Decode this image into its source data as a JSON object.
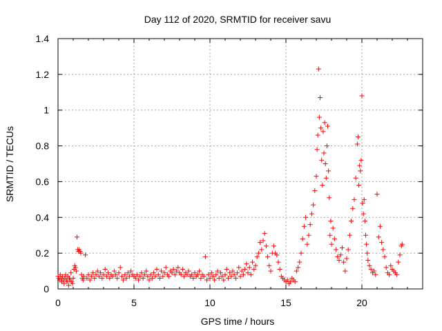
{
  "chart_data": {
    "type": "scatter",
    "title": "Day 112 of 2020, SRMTID for receiver savu",
    "xlabel": "GPS time / hours",
    "ylabel": "SRMTID / TECUs",
    "xlim": [
      0,
      24
    ],
    "ylim": [
      0,
      1.4
    ],
    "xticks": [
      0,
      5,
      10,
      15,
      20
    ],
    "xtick_labels": [
      "0",
      "5",
      "10",
      "15",
      "20"
    ],
    "yticks": [
      0,
      0.2,
      0.4,
      0.6,
      0.8,
      1.0,
      1.2,
      1.4
    ],
    "ytick_labels": [
      "0",
      "0.2",
      "0.4",
      "0.6",
      "0.8",
      "1",
      "1.2",
      "1.4"
    ],
    "grid": true,
    "marker": "+",
    "series": [
      {
        "name": "SRMTID",
        "color": "#ff0000",
        "x": [
          0.0,
          0.05,
          0.1,
          0.15,
          0.2,
          0.25,
          0.3,
          0.35,
          0.4,
          0.45,
          0.5,
          0.55,
          0.6,
          0.65,
          0.7,
          0.75,
          0.8,
          0.85,
          0.9,
          0.95,
          1.0,
          1.05,
          1.1,
          1.15,
          1.2,
          1.25,
          1.3,
          1.35,
          1.4,
          1.45,
          1.5,
          1.55,
          1.6,
          1.65,
          1.7,
          1.8,
          1.9,
          2.0,
          2.1,
          2.2,
          2.3,
          2.4,
          2.5,
          2.6,
          2.7,
          2.8,
          2.9,
          3.0,
          3.1,
          3.2,
          3.3,
          3.4,
          3.5,
          3.6,
          3.7,
          3.8,
          3.9,
          4.0,
          4.1,
          4.2,
          4.3,
          4.4,
          4.5,
          4.6,
          4.7,
          4.8,
          4.9,
          5.0,
          5.1,
          5.2,
          5.3,
          5.4,
          5.5,
          5.6,
          5.7,
          5.8,
          5.9,
          6.0,
          6.1,
          6.2,
          6.3,
          6.4,
          6.5,
          6.6,
          6.7,
          6.8,
          6.9,
          7.0,
          7.1,
          7.2,
          7.3,
          7.4,
          7.5,
          7.6,
          7.7,
          7.8,
          7.9,
          8.0,
          8.1,
          8.2,
          8.3,
          8.4,
          8.5,
          8.6,
          8.7,
          8.8,
          8.9,
          9.0,
          9.1,
          9.2,
          9.3,
          9.4,
          9.5,
          9.6,
          9.7,
          9.8,
          9.9,
          10.0,
          10.1,
          10.2,
          10.3,
          10.4,
          10.5,
          10.6,
          10.7,
          10.8,
          10.9,
          11.0,
          11.1,
          11.2,
          11.3,
          11.4,
          11.5,
          11.6,
          11.7,
          11.8,
          11.9,
          12.0,
          12.1,
          12.2,
          12.3,
          12.4,
          12.5,
          12.6,
          12.7,
          12.8,
          12.9,
          13.0,
          13.1,
          13.2,
          13.3,
          13.4,
          13.5,
          13.6,
          13.7,
          13.8,
          13.9,
          14.0,
          14.1,
          14.2,
          14.3,
          14.4,
          14.5,
          14.6,
          14.7,
          14.8,
          14.9,
          15.0,
          15.1,
          15.2,
          15.3,
          15.4,
          15.5,
          15.6,
          15.7,
          15.8,
          15.9,
          16.0,
          16.1,
          16.2,
          16.3,
          16.4,
          16.5,
          16.6,
          16.7,
          16.8,
          16.9,
          17.0,
          17.05,
          17.1,
          17.15,
          17.2,
          17.25,
          17.3,
          17.35,
          17.4,
          17.45,
          17.5,
          17.55,
          17.6,
          17.65,
          17.7,
          17.75,
          17.8,
          17.85,
          17.9,
          17.95,
          18.0,
          18.1,
          18.2,
          18.3,
          18.4,
          18.5,
          18.6,
          18.7,
          18.8,
          18.9,
          19.0,
          19.1,
          19.2,
          19.3,
          19.4,
          19.5,
          19.6,
          19.7,
          19.75,
          19.8,
          19.85,
          19.9,
          19.95,
          20.0,
          20.05,
          20.1,
          20.15,
          20.2,
          20.25,
          20.3,
          20.35,
          20.4,
          20.5,
          20.6,
          20.7,
          20.8,
          20.9,
          21.0,
          21.1,
          21.2,
          21.3,
          21.4,
          21.5,
          21.6,
          21.7,
          21.8,
          21.9,
          22.0,
          22.1,
          22.2,
          22.3,
          22.4,
          22.5,
          22.6,
          22.65
        ],
        "y": [
          0.07,
          0.06,
          0.05,
          0.08,
          0.06,
          0.04,
          0.07,
          0.05,
          0.03,
          0.06,
          0.08,
          0.05,
          0.04,
          0.07,
          0.02,
          0.06,
          0.05,
          0.09,
          0.04,
          0.03,
          0.06,
          0.11,
          0.13,
          0.12,
          0.1,
          0.29,
          0.22,
          0.21,
          0.22,
          0.21,
          0.2,
          0.08,
          0.06,
          0.05,
          0.07,
          0.19,
          0.06,
          0.08,
          0.05,
          0.07,
          0.09,
          0.06,
          0.08,
          0.1,
          0.07,
          0.09,
          0.06,
          0.08,
          0.11,
          0.07,
          0.09,
          0.06,
          0.08,
          0.07,
          0.1,
          0.08,
          0.06,
          0.09,
          0.12,
          0.07,
          0.05,
          0.08,
          0.06,
          0.09,
          0.07,
          0.1,
          0.08,
          0.07,
          0.06,
          0.08,
          0.05,
          0.07,
          0.09,
          0.06,
          0.08,
          0.1,
          0.07,
          0.05,
          0.08,
          0.06,
          0.09,
          0.07,
          0.11,
          0.08,
          0.06,
          0.1,
          0.07,
          0.09,
          0.12,
          0.08,
          0.07,
          0.1,
          0.09,
          0.11,
          0.08,
          0.1,
          0.12,
          0.09,
          0.08,
          0.11,
          0.07,
          0.09,
          0.08,
          0.1,
          0.07,
          0.08,
          0.06,
          0.09,
          0.07,
          0.08,
          0.1,
          0.06,
          0.08,
          0.07,
          0.18,
          0.05,
          0.08,
          0.06,
          0.09,
          0.07,
          0.05,
          0.08,
          0.1,
          0.06,
          0.09,
          0.07,
          0.05,
          0.08,
          0.11,
          0.06,
          0.09,
          0.07,
          0.1,
          0.08,
          0.06,
          0.09,
          0.12,
          0.07,
          0.1,
          0.08,
          0.11,
          0.14,
          0.09,
          0.12,
          0.08,
          0.15,
          0.11,
          0.13,
          0.18,
          0.2,
          0.26,
          0.22,
          0.27,
          0.31,
          0.24,
          0.18,
          0.13,
          0.1,
          0.2,
          0.24,
          0.2,
          0.19,
          0.15,
          0.11,
          0.07,
          0.06,
          0.05,
          0.04,
          0.05,
          0.03,
          0.04,
          0.06,
          0.05,
          0.04,
          0.1,
          0.12,
          0.15,
          0.2,
          0.28,
          0.35,
          0.4,
          0.25,
          0.3,
          0.36,
          0.42,
          0.47,
          0.55,
          0.63,
          0.78,
          0.86,
          1.23,
          0.96,
          1.07,
          0.9,
          0.72,
          0.58,
          0.88,
          0.76,
          0.93,
          0.7,
          0.62,
          0.8,
          0.91,
          0.66,
          0.51,
          0.3,
          0.38,
          0.25,
          0.34,
          0.28,
          0.22,
          0.18,
          0.16,
          0.19,
          0.23,
          0.15,
          0.1,
          0.17,
          0.22,
          0.3,
          0.38,
          0.45,
          0.5,
          0.62,
          0.81,
          0.85,
          0.58,
          0.69,
          0.66,
          0.72,
          1.08,
          0.48,
          0.42,
          0.5,
          0.38,
          0.3,
          0.25,
          0.2,
          0.16,
          0.13,
          0.11,
          0.09,
          0.1,
          0.08,
          0.53,
          0.29,
          0.35,
          0.26,
          0.22,
          0.18,
          0.12,
          0.09,
          0.08,
          0.13,
          0.11,
          0.1,
          0.09,
          0.08,
          0.15,
          0.19,
          0.24,
          0.25
        ]
      }
    ]
  }
}
